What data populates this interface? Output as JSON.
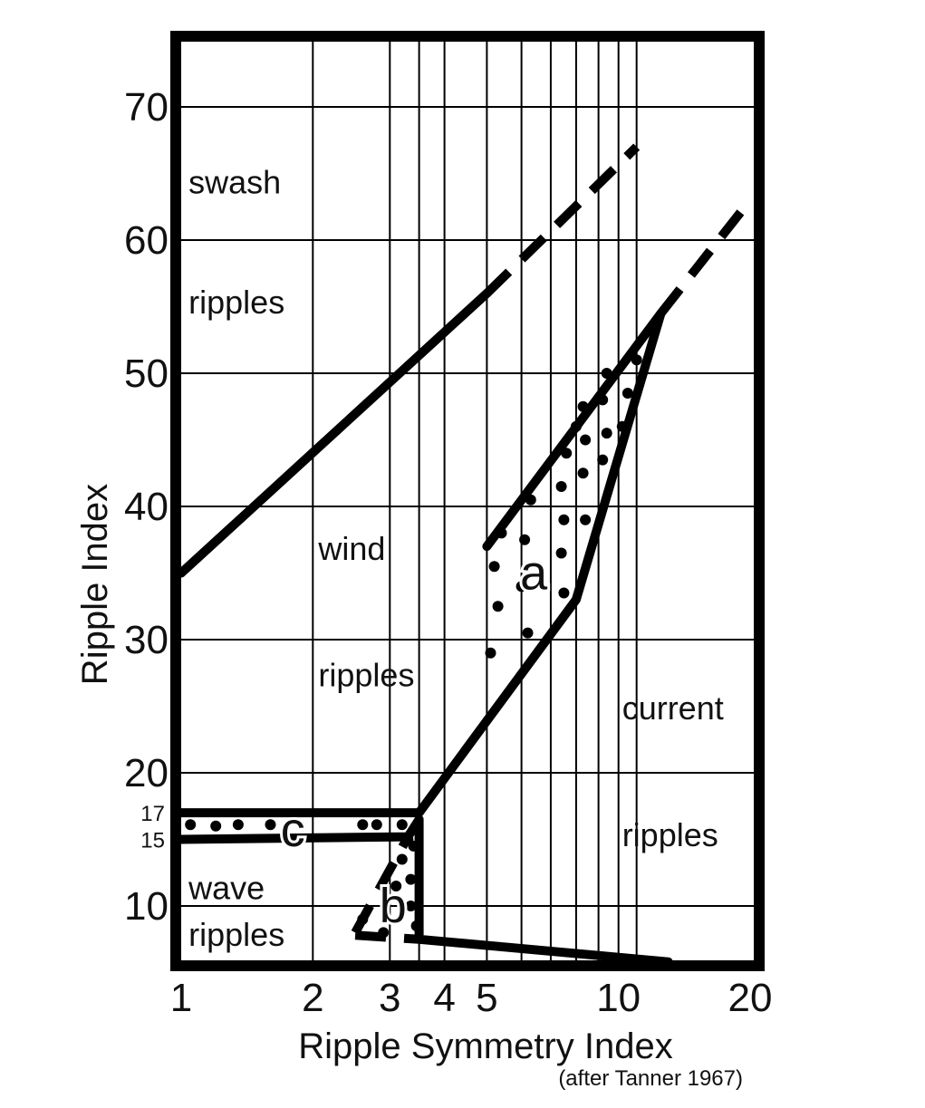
{
  "chart_data": {
    "type": "diagram-on-log-linear-axes",
    "xlabel": "Ripple Symmetry Index",
    "ylabel": "Ripple Index",
    "credit": "(after Tanner 1967)",
    "x_scale": "log",
    "xlim": [
      1,
      20
    ],
    "ylim": [
      5,
      75
    ],
    "x_ticks": [
      1,
      2,
      3,
      4,
      5,
      10,
      20
    ],
    "x_tick_labels": [
      "1",
      "2",
      "3",
      "4",
      "5",
      "10",
      "20"
    ],
    "y_ticks": [
      10,
      20,
      30,
      40,
      50,
      60,
      70
    ],
    "y_tick_labels": [
      "10",
      "20",
      "30",
      "40",
      "50",
      "60",
      "70"
    ],
    "y_minor_labels": [
      {
        "value": 17,
        "label": "17"
      },
      {
        "value": 15,
        "label": "15"
      }
    ],
    "grid": true,
    "x_grid_lines": [
      2,
      3,
      3.5,
      4,
      5,
      6,
      7,
      8,
      9,
      10,
      11
    ],
    "y_grid_lines": [
      10,
      20,
      30,
      40,
      50,
      60,
      70
    ],
    "region_labels": [
      {
        "text": "swash",
        "x": 1.02,
        "y": 63.5
      },
      {
        "text": "ripples",
        "x": 1.02,
        "y": 54.5
      },
      {
        "text": "wind",
        "x": 2.02,
        "y": 36.0
      },
      {
        "text": "ripples",
        "x": 2.02,
        "y": 26.5
      },
      {
        "text": "current",
        "x": 10.0,
        "y": 24.0
      },
      {
        "text": "ripples",
        "x": 10.0,
        "y": 14.5
      },
      {
        "text": "wave",
        "x": 1.02,
        "y": 10.5
      },
      {
        "text": "ripples",
        "x": 1.02,
        "y": 7.0
      }
    ],
    "zone_labels": [
      {
        "text": "a",
        "x": 6.4,
        "y": 35.0
      },
      {
        "text": "b",
        "x": 3.05,
        "y": 10.0
      },
      {
        "text": "c",
        "x": 1.8,
        "y": 15.7
      }
    ],
    "boundaries": [
      {
        "style": "solid",
        "points": [
          [
            1.0,
            35.0
          ],
          [
            5.0,
            56.0
          ]
        ]
      },
      {
        "style": "dashed",
        "points": [
          [
            5.0,
            56.0
          ],
          [
            11.0,
            67.0
          ]
        ]
      },
      {
        "style": "solid",
        "points": [
          [
            1.0,
            17.0
          ],
          [
            3.5,
            17.0
          ],
          [
            8.0,
            33.0
          ],
          [
            12.5,
            54.5
          ]
        ]
      },
      {
        "style": "dashed",
        "points": [
          [
            12.5,
            54.5
          ],
          [
            20.0,
            63.0
          ]
        ]
      },
      {
        "style": "solid",
        "points": [
          [
            1.0,
            15.0
          ],
          [
            3.3,
            15.2
          ],
          [
            3.5,
            16.5
          ],
          [
            3.5,
            7.5
          ],
          [
            13.0,
            5.8
          ]
        ]
      },
      {
        "style": "solid",
        "points": [
          [
            5.0,
            37.0
          ],
          [
            12.5,
            54.5
          ]
        ]
      },
      {
        "style": "dashed",
        "points": [
          [
            2.5,
            8.0
          ],
          [
            3.3,
            15.2
          ]
        ]
      },
      {
        "style": "dashed",
        "points": [
          [
            2.5,
            7.8
          ],
          [
            3.5,
            7.5
          ]
        ]
      }
    ],
    "dotted_zones": [
      {
        "name": "a",
        "dots": [
          [
            5.1,
            29.0
          ],
          [
            5.3,
            32.5
          ],
          [
            5.2,
            35.5
          ],
          [
            5.4,
            38.0
          ],
          [
            6.2,
            30.5
          ],
          [
            6.0,
            34.0
          ],
          [
            6.1,
            37.5
          ],
          [
            6.3,
            40.5
          ],
          [
            7.5,
            33.5
          ],
          [
            7.4,
            36.5
          ],
          [
            7.5,
            39.0
          ],
          [
            7.4,
            41.5
          ],
          [
            7.6,
            44.0
          ],
          [
            8.0,
            46.0
          ],
          [
            8.4,
            39.0
          ],
          [
            8.3,
            42.5
          ],
          [
            8.4,
            45.0
          ],
          [
            8.3,
            47.5
          ],
          [
            9.2,
            43.5
          ],
          [
            9.4,
            45.5
          ],
          [
            9.2,
            48.0
          ],
          [
            9.4,
            50.0
          ],
          [
            10.2,
            46.0
          ],
          [
            10.5,
            48.5
          ],
          [
            11.0,
            51.0
          ]
        ]
      },
      {
        "name": "b",
        "dots": [
          [
            2.6,
            9.0
          ],
          [
            2.9,
            8.0
          ],
          [
            3.1,
            11.5
          ],
          [
            3.2,
            13.5
          ],
          [
            3.3,
            15.0
          ],
          [
            3.35,
            10.0
          ],
          [
            3.35,
            12.0
          ],
          [
            3.4,
            14.5
          ],
          [
            3.45,
            8.5
          ]
        ]
      },
      {
        "name": "c",
        "dots": [
          [
            1.05,
            16.1
          ],
          [
            1.2,
            16.0
          ],
          [
            1.35,
            16.1
          ],
          [
            1.6,
            16.1
          ],
          [
            2.6,
            16.1
          ],
          [
            2.8,
            16.1
          ],
          [
            3.2,
            16.1
          ]
        ]
      }
    ]
  }
}
